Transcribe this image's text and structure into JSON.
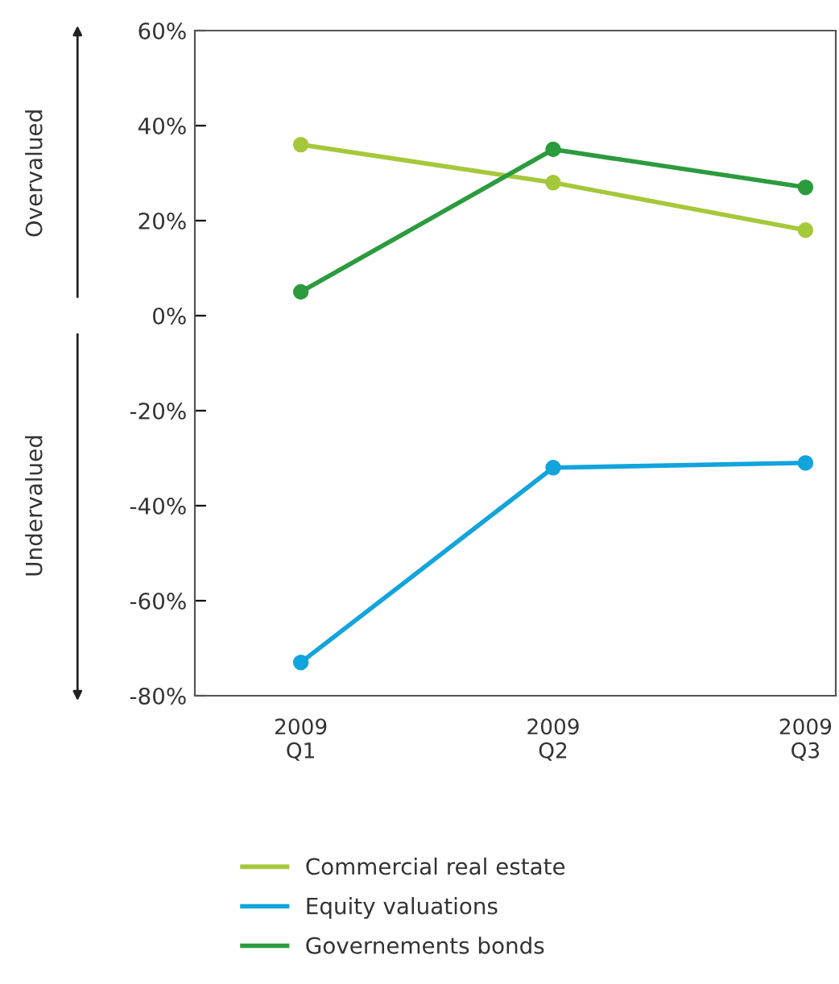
{
  "chart_data": {
    "type": "line",
    "categories": [
      "2009\nQ1",
      "2009\nQ2",
      "2009\nQ3"
    ],
    "series": [
      {
        "name": "Commercial real estate",
        "color": "#a5c83b",
        "values": [
          36,
          28,
          18
        ]
      },
      {
        "name": "Equity valuations",
        "color": "#12a4dc",
        "values": [
          -73,
          -32,
          -31
        ]
      },
      {
        "name": "Governements bonds",
        "color": "#2b9b3e",
        "values": [
          5,
          35,
          27
        ]
      }
    ],
    "ylim": [
      -80,
      60
    ],
    "yticks": [
      {
        "value": -80,
        "label": "-80%"
      },
      {
        "value": -60,
        "label": "-60%"
      },
      {
        "value": -40,
        "label": "-40%"
      },
      {
        "value": -20,
        "label": "-20%"
      },
      {
        "value": 0,
        "label": "0%"
      },
      {
        "value": 20,
        "label": "20%"
      },
      {
        "value": 40,
        "label": "40%"
      },
      {
        "value": 60,
        "label": "60%"
      }
    ],
    "annotations": [
      "Overvalued",
      "Undervalued"
    ],
    "marker": "circle",
    "grid": false,
    "legend": "bottom"
  }
}
